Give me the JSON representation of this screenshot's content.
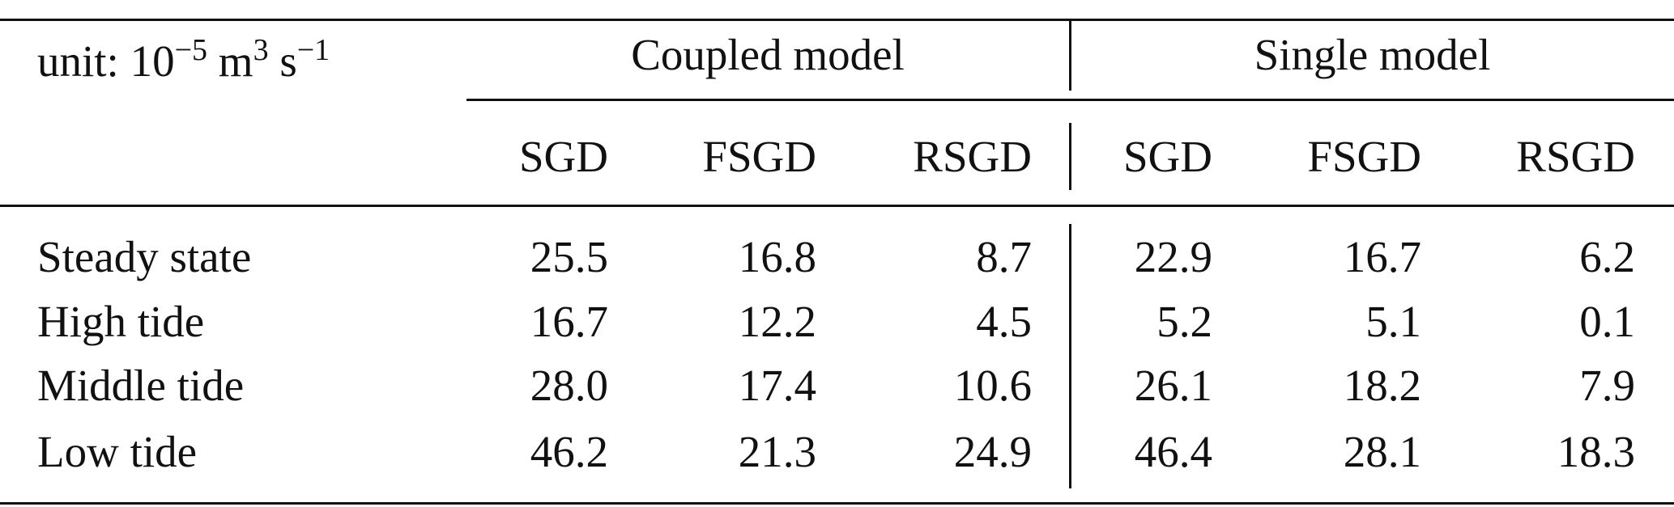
{
  "unit": {
    "prefix": "unit: 10",
    "exp1": "−5",
    "mid": " m",
    "exp2": "3",
    "mid2": " s",
    "exp3": "−1"
  },
  "groups": [
    "Coupled model",
    "Single model"
  ],
  "columns": [
    "SGD",
    "FSGD",
    "RSGD",
    "SGD",
    "FSGD",
    "RSGD"
  ],
  "rows": [
    {
      "label": "Steady state",
      "values": [
        "25.5",
        "16.8",
        "8.7",
        "22.9",
        "16.7",
        "6.2"
      ]
    },
    {
      "label": "High tide",
      "values": [
        "16.7",
        "12.2",
        "4.5",
        "5.2",
        "5.1",
        "0.1"
      ]
    },
    {
      "label": "Middle tide",
      "values": [
        "28.0",
        "17.4",
        "10.6",
        "26.1",
        "18.2",
        "7.9"
      ]
    },
    {
      "label": "Low tide",
      "values": [
        "46.2",
        "21.3",
        "24.9",
        "46.4",
        "28.1",
        "18.3"
      ]
    }
  ]
}
